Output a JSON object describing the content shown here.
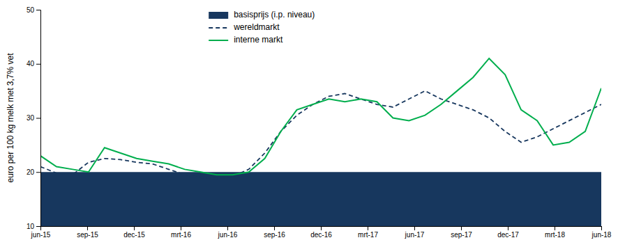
{
  "chart_data": {
    "type": "line",
    "ylabel": "euro per 100 kg melk met 3,7% vet",
    "xlim": [
      0,
      12
    ],
    "xticks": [
      {
        "value": 0,
        "label": "jun-15"
      },
      {
        "value": 1,
        "label": "sep-15"
      },
      {
        "value": 2,
        "label": "dec-15"
      },
      {
        "value": 3,
        "label": "mrt-16"
      },
      {
        "value": 4,
        "label": "jun-16"
      },
      {
        "value": 5,
        "label": "sep-16"
      },
      {
        "value": 6,
        "label": "dec-16"
      },
      {
        "value": 7,
        "label": "mrt-17"
      },
      {
        "value": 8,
        "label": "jun-17"
      },
      {
        "value": 9,
        "label": "sep-17"
      },
      {
        "value": 10,
        "label": "dec-17"
      },
      {
        "value": 11,
        "label": "mrt-18"
      },
      {
        "value": 12,
        "label": "jun-18"
      }
    ],
    "ylim": [
      10,
      50
    ],
    "yticks": [
      10,
      20,
      30,
      40,
      50
    ],
    "grid": false,
    "legend": "top",
    "x": [
      0,
      0.342857,
      0.685714,
      1.028571,
      1.371429,
      1.714286,
      2.057143,
      2.4,
      2.742857,
      3.085714,
      3.428571,
      3.771429,
      4.114286,
      4.457143,
      4.8,
      5.142857,
      5.485714,
      5.828571,
      6.171429,
      6.514286,
      6.857143,
      7.2,
      7.542857,
      7.885714,
      8.228571,
      8.571429,
      8.914286,
      9.257143,
      9.6,
      9.942857,
      10.285714,
      10.628571,
      10.971429,
      11.314286,
      11.657143,
      12
    ],
    "series": [
      {
        "name": "basisprijs (i.p. niveau)",
        "type": "area",
        "color": "#17375e",
        "values": [
          20,
          20,
          20,
          20,
          20,
          20,
          20,
          20,
          20,
          20,
          20,
          20,
          20,
          20,
          20,
          20,
          20,
          20,
          20,
          20,
          20,
          20,
          20,
          20,
          20,
          20,
          20,
          20,
          20,
          20,
          20,
          20,
          20,
          20,
          20,
          20
        ]
      },
      {
        "name": "wereldmarkt",
        "type": "line",
        "color": "#17375e",
        "line_style": "dashed",
        "values": [
          21.0,
          19.8,
          19.5,
          21.8,
          22.5,
          22.3,
          21.8,
          21.5,
          20.5,
          19.5,
          19.0,
          18.8,
          19.2,
          20.5,
          23.5,
          27.5,
          30.5,
          32.5,
          34.0,
          34.5,
          33.5,
          32.5,
          32.0,
          33.5,
          35.0,
          33.5,
          32.5,
          31.5,
          30.0,
          27.5,
          25.5,
          26.5,
          28.0,
          29.5,
          31.0,
          32.5
        ]
      },
      {
        "name": "interne markt",
        "type": "line",
        "color": "#00ae4d",
        "line_style": "solid",
        "values": [
          23.0,
          21.0,
          20.5,
          20.0,
          24.5,
          23.5,
          22.5,
          22.0,
          21.5,
          20.5,
          20.0,
          19.5,
          19.5,
          20.0,
          22.5,
          27.5,
          31.5,
          32.5,
          33.5,
          33.0,
          33.5,
          33.0,
          30.0,
          29.5,
          30.5,
          32.5,
          35.0,
          37.5,
          41.0,
          38.0,
          31.5,
          29.5,
          25.0,
          25.5,
          27.5,
          35.5
        ]
      }
    ]
  }
}
